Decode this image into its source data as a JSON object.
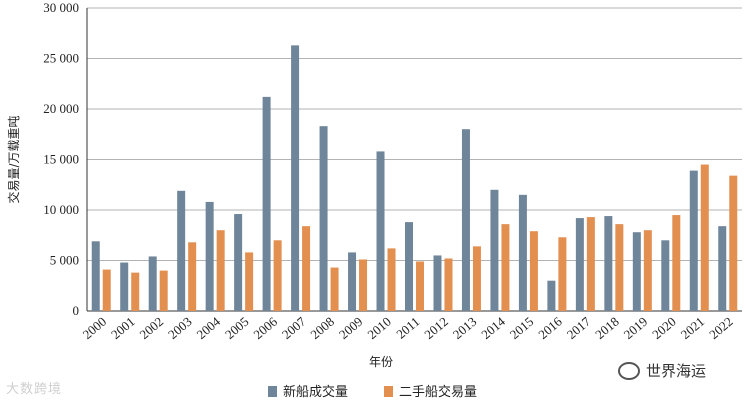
{
  "chart_data": {
    "type": "bar",
    "categories": [
      "2000",
      "2001",
      "2002",
      "2003",
      "2004",
      "2005",
      "2006",
      "2007",
      "2008",
      "2009",
      "2010",
      "2011",
      "2012",
      "2013",
      "2014",
      "2015",
      "2016",
      "2017",
      "2018",
      "2019",
      "2020",
      "2021",
      "2022"
    ],
    "series": [
      {
        "name": "新船成交量",
        "color": "#6f8599",
        "values": [
          6900,
          4800,
          5400,
          11900,
          10800,
          9600,
          21200,
          26300,
          18300,
          5800,
          15800,
          8800,
          5500,
          18000,
          12000,
          11500,
          3000,
          9200,
          9400,
          7800,
          7000,
          13900,
          8400
        ]
      },
      {
        "name": "二手船交易量",
        "color": "#e28f4f",
        "values": [
          4100,
          3800,
          4000,
          6800,
          8000,
          5800,
          7000,
          8400,
          4300,
          5100,
          6200,
          4900,
          5200,
          6400,
          8600,
          7900,
          7300,
          9300,
          8600,
          8000,
          9500,
          14500,
          13400
        ]
      }
    ],
    "yticks": [
      "0",
      "5 000",
      "10 000",
      "15 000",
      "20 000",
      "25 000",
      "30 000"
    ],
    "ylim": [
      0,
      30000
    ],
    "ylabel": "交易量/万载重吨",
    "xlabel": "年份",
    "legend_position": "bottom-center",
    "grid": true
  },
  "watermarks": {
    "left": "大数跨境",
    "right": "世界海运"
  }
}
